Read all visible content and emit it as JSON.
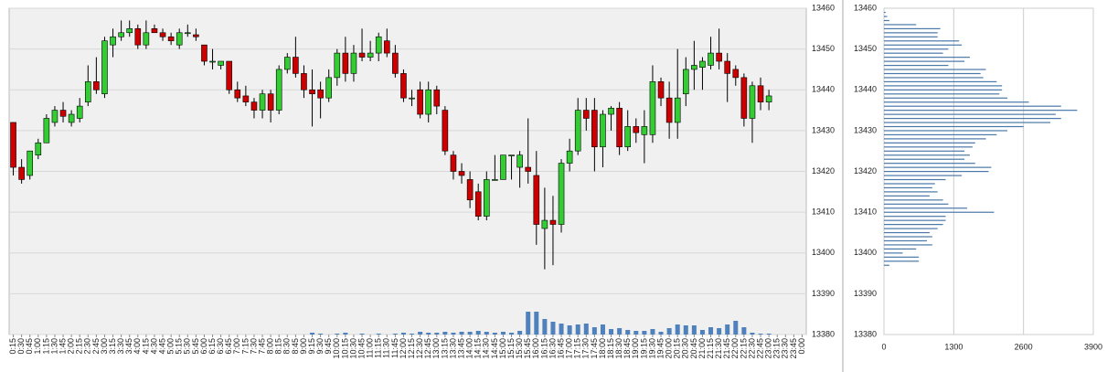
{
  "chart_data": [
    {
      "type": "candlestick",
      "categories": [
        "0:15",
        "0:30",
        "0:45",
        "1:00",
        "1:15",
        "1:30",
        "1:45",
        "2:00",
        "2:15",
        "2:30",
        "2:45",
        "3:00",
        "3:15",
        "3:30",
        "3:45",
        "4:00",
        "4:15",
        "4:30",
        "4:45",
        "5:00",
        "5:15",
        "5:30",
        "5:45",
        "6:00",
        "6:15",
        "6:30",
        "6:45",
        "7:00",
        "7:15",
        "7:30",
        "7:45",
        "8:00",
        "8:15",
        "8:30",
        "8:45",
        "9:00",
        "9:15",
        "9:30",
        "9:45",
        "10:00",
        "10:15",
        "10:30",
        "10:45",
        "11:00",
        "11:15",
        "11:30",
        "11:45",
        "12:00",
        "12:15",
        "12:30",
        "12:45",
        "13:00",
        "13:15",
        "13:30",
        "13:45",
        "14:00",
        "14:15",
        "14:30",
        "14:45",
        "15:00",
        "15:15",
        "15:30",
        "15:45",
        "16:00",
        "16:15",
        "16:30",
        "16:45",
        "17:00",
        "17:15",
        "17:30",
        "17:45",
        "18:00",
        "18:15",
        "18:30",
        "18:45",
        "19:00",
        "19:15",
        "19:30",
        "19:45",
        "20:00",
        "20:15",
        "20:30",
        "20:45",
        "21:00",
        "21:15",
        "21:30",
        "21:45",
        "22:00",
        "22:15",
        "22:30",
        "22:45",
        "23:00",
        "23:15",
        "23:30",
        "23:45",
        "0:00"
      ],
      "open": [
        13432,
        13421,
        13419,
        13424,
        13427,
        13432,
        13435,
        13432,
        13433,
        13437,
        13442,
        13439,
        13451,
        13453,
        13454,
        13455,
        13451,
        13455,
        13454,
        13453,
        13451,
        13454,
        13453.5,
        13451,
        13447,
        13446,
        13447,
        13440,
        13438.5,
        13437,
        13435,
        13439,
        13435,
        13445,
        13448,
        13444,
        13440,
        13440,
        13438,
        13443,
        13449,
        13444,
        13449,
        13448,
        13449,
        13452,
        13449,
        13444,
        13438,
        13440,
        13434,
        13440,
        13435,
        13424,
        13420,
        13418,
        13415,
        13409,
        13418,
        13418,
        13424,
        13421,
        13421,
        13419,
        13406,
        13408,
        13407,
        13422,
        13425,
        13435,
        13435,
        13426,
        13434,
        13435.5,
        13426,
        13431,
        13429,
        13429,
        13442,
        13438,
        13432,
        13439,
        13445,
        13445.5,
        13446,
        13449,
        13447,
        13445,
        13443,
        13433,
        13441,
        13437,
        null,
        null,
        null,
        null
      ],
      "high": [
        13432,
        13423,
        13425,
        13428,
        13434,
        13436,
        13437,
        13435,
        13438,
        13446,
        13448,
        13453,
        13455,
        13457,
        13457,
        13456,
        13457,
        13456,
        13455,
        13454,
        13455,
        13456,
        13455,
        13451,
        13450,
        13447,
        13447,
        13442,
        13441,
        13438,
        13440,
        13440,
        13446,
        13449,
        13453,
        13446,
        13445,
        13442,
        13445,
        13450,
        13453,
        13451,
        13455,
        13452,
        13454,
        13455,
        13451,
        13445,
        13440,
        13442,
        13442,
        13441,
        13436,
        13425,
        13422,
        13420,
        13417,
        13420,
        13424,
        13424,
        13424,
        13425,
        13433,
        13425,
        13416,
        13414,
        13423,
        13428,
        13438,
        13438,
        13438,
        13435,
        13436,
        13437,
        13435,
        13433,
        13435,
        13446,
        13443,
        13442,
        13450,
        13448,
        13452,
        13448,
        13453,
        13455,
        13449,
        13446,
        13444,
        13442,
        13443,
        13440,
        null,
        null,
        null,
        null
      ],
      "low": [
        13419,
        13417,
        13418,
        13423,
        13427,
        13431,
        13432,
        13431,
        13432,
        13436,
        13439,
        13438,
        13448,
        13452,
        13453,
        13450,
        13450,
        13454,
        13452,
        13451,
        13450,
        13453,
        13452,
        13446,
        13445,
        13445,
        13439,
        13437,
        13436,
        13433,
        13433,
        13432,
        13434,
        13444,
        13443,
        13438,
        13431,
        13433,
        13437,
        13441,
        13442,
        13442,
        13447,
        13447,
        13447,
        13448,
        13443,
        13437,
        13436,
        13433,
        13432,
        13434,
        13424,
        13418,
        13417,
        13411,
        13408,
        13408,
        13418,
        13418,
        13418,
        13416,
        13417,
        13402,
        13396,
        13397,
        13405,
        13420,
        13424,
        13430,
        13420,
        13421,
        13430,
        13424,
        13425,
        13427,
        13422,
        13427,
        13436,
        13428,
        13428,
        13436,
        13440,
        13440,
        13445,
        13445,
        13437,
        13441,
        13431,
        13427,
        13435,
        13435,
        null,
        null,
        null,
        null
      ],
      "close": [
        13421,
        13418,
        13425,
        13427,
        13433,
        13435,
        13433.5,
        13434,
        13436,
        13442,
        13440,
        13452,
        13453,
        13454,
        13455,
        13451,
        13454,
        13454,
        13453,
        13452,
        13454,
        13454,
        13453,
        13447,
        13447,
        13447,
        13440,
        13438,
        13437,
        13435,
        13439,
        13435,
        13445,
        13448,
        13444,
        13440,
        13439,
        13438,
        13443,
        13449,
        13444,
        13449,
        13448,
        13449,
        13453,
        13449,
        13444,
        13438,
        13438,
        13434,
        13440,
        13436,
        13425,
        13420,
        13419,
        13413,
        13409,
        13418,
        13418,
        13424,
        13424,
        13424,
        13420,
        13407,
        13408,
        13407,
        13422,
        13425,
        13435,
        13433,
        13426,
        13434,
        13435.5,
        13426,
        13431,
        13429.5,
        13431,
        13442,
        13438,
        13432,
        13438,
        13445,
        13446,
        13447,
        13449,
        13447,
        13444,
        13443,
        13433,
        13441,
        13437,
        13438.5,
        null,
        null,
        null,
        null
      ],
      "volume": [
        0,
        0,
        0,
        0,
        0,
        0,
        0,
        0,
        0,
        0,
        0,
        0,
        0,
        0,
        0,
        0,
        0,
        0,
        0,
        0,
        0,
        0,
        0,
        0,
        0,
        0,
        0,
        0,
        0,
        0,
        0,
        0,
        0,
        0,
        0,
        0,
        2,
        1,
        0,
        1,
        2,
        0,
        1,
        0,
        1,
        0,
        1,
        2,
        1,
        3,
        2,
        2,
        3,
        2,
        3,
        3,
        4,
        3,
        2,
        3,
        2,
        4,
        25,
        25,
        17,
        14,
        12,
        10,
        11,
        12,
        8,
        11,
        6,
        7,
        5,
        4,
        4,
        6,
        3,
        7,
        11,
        10,
        10,
        5,
        8,
        7,
        11,
        15,
        8,
        2,
        1,
        1,
        null,
        null,
        null,
        null
      ],
      "up_color": "#33cc33",
      "down_color": "#cc0000",
      "volume_color": "#4f81bd",
      "ylim": [
        13380,
        13460
      ],
      "yticks": [
        13380,
        13390,
        13400,
        13410,
        13420,
        13430,
        13440,
        13450,
        13460
      ],
      "grid": true
    },
    {
      "type": "bar",
      "orientation": "horizontal",
      "prices": [
        13459,
        13458,
        13457,
        13456,
        13455,
        13454,
        13453,
        13452,
        13451,
        13450,
        13449,
        13448,
        13447,
        13446,
        13445,
        13444,
        13443,
        13442,
        13441,
        13440,
        13439,
        13438,
        13437,
        13436,
        13435,
        13434,
        13433,
        13432,
        13431,
        13430,
        13429,
        13428,
        13427,
        13426,
        13425,
        13424,
        13423,
        13422,
        13421,
        13420,
        13419,
        13418,
        13417,
        13416,
        13415,
        13414,
        13413,
        13412,
        13411,
        13410,
        13409,
        13408,
        13407,
        13406,
        13405,
        13404,
        13403,
        13402,
        13401,
        13400,
        13399,
        13398,
        13397
      ],
      "values": [
        30,
        60,
        100,
        600,
        1050,
        1000,
        1000,
        1400,
        1450,
        1200,
        1100,
        1600,
        1500,
        1200,
        1900,
        1800,
        1850,
        2100,
        2200,
        2200,
        2150,
        2300,
        2700,
        3300,
        3600,
        3200,
        3300,
        3100,
        2600,
        2300,
        2100,
        1900,
        1700,
        1650,
        1500,
        1600,
        1500,
        1700,
        2000,
        1950,
        1450,
        1150,
        950,
        900,
        1000,
        850,
        1100,
        1200,
        1550,
        2050,
        1150,
        1150,
        1100,
        1000,
        850,
        900,
        800,
        900,
        600,
        350,
        650,
        650,
        100
      ],
      "color": "#4a78a8",
      "xlim": [
        0,
        3900
      ],
      "xticks": [
        0,
        1300,
        2600,
        3900
      ],
      "ylim": [
        13380,
        13460
      ],
      "yticks": [
        13380,
        13390,
        13400,
        13410,
        13420,
        13430,
        13440,
        13450,
        13460
      ],
      "grid": true
    }
  ]
}
